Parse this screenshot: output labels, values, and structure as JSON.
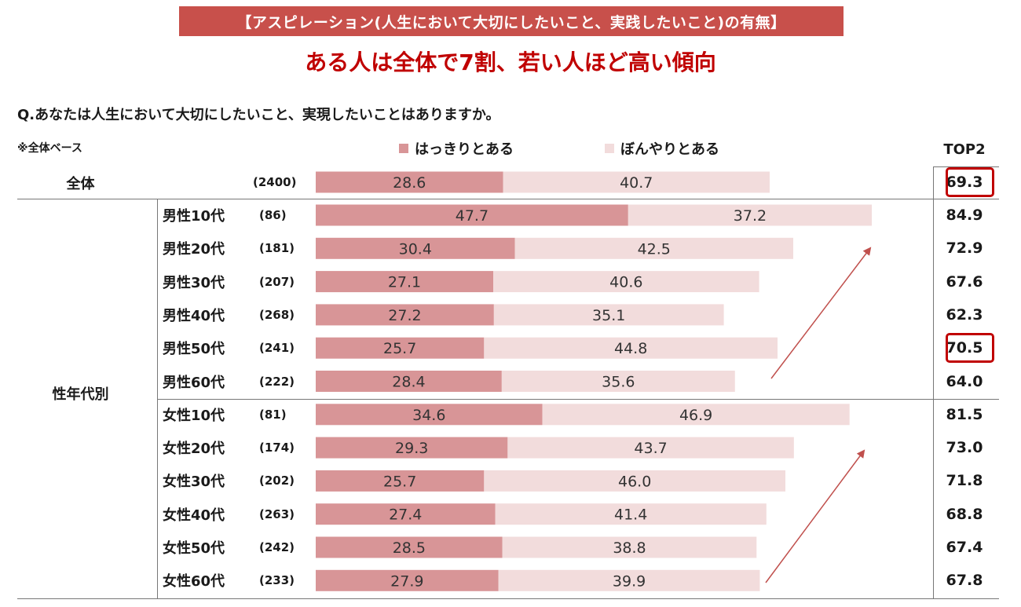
{
  "banner": "【アスピレーション(人生において大切にしたいこと、実践したいこと)の有無】",
  "headline": "ある人は全体で7割、若い人ほど高い傾向",
  "question": "Q.あなたは人生において大切にしたいこと、実現したいことはありますか。",
  "base_note": "※全体ベース",
  "top2_header": "TOP2",
  "total_label": "全体",
  "group_label": "性年代別",
  "colors": {
    "clear": "#d89597",
    "vague": "#f2dcdc",
    "highlight": "#c00000",
    "banner": "#c8504b",
    "arrow": "#c0504d"
  },
  "chart_data": {
    "type": "bar",
    "stacked": true,
    "orientation": "horizontal",
    "series": [
      {
        "name": "はっきりとある",
        "values": [
          28.6,
          47.7,
          30.4,
          27.1,
          27.2,
          25.7,
          28.4,
          34.6,
          29.3,
          25.7,
          27.4,
          28.5,
          27.9
        ]
      },
      {
        "name": "ぼんやりとある",
        "values": [
          40.7,
          37.2,
          42.5,
          40.6,
          35.1,
          44.8,
          35.6,
          46.9,
          43.7,
          46.0,
          41.4,
          38.8,
          39.9
        ]
      }
    ],
    "categories": [
      "全体",
      "男性10代",
      "男性20代",
      "男性30代",
      "男性40代",
      "男性50代",
      "男性60代",
      "女性10代",
      "女性20代",
      "女性30代",
      "女性40代",
      "女性50代",
      "女性60代"
    ],
    "n": [
      "(2400)",
      "(86)",
      "(181)",
      "(207)",
      "(268)",
      "(241)",
      "(222)",
      "(81)",
      "(174)",
      "(202)",
      "(263)",
      "(242)",
      "(233)"
    ],
    "top2": [
      "69.3",
      "84.9",
      "72.9",
      "67.6",
      "62.3",
      "70.5",
      "64.0",
      "81.5",
      "73.0",
      "71.8",
      "68.8",
      "67.4",
      "67.8"
    ],
    "highlighted_top2": [
      "全体",
      "男性50代"
    ],
    "legend_position": "top"
  }
}
